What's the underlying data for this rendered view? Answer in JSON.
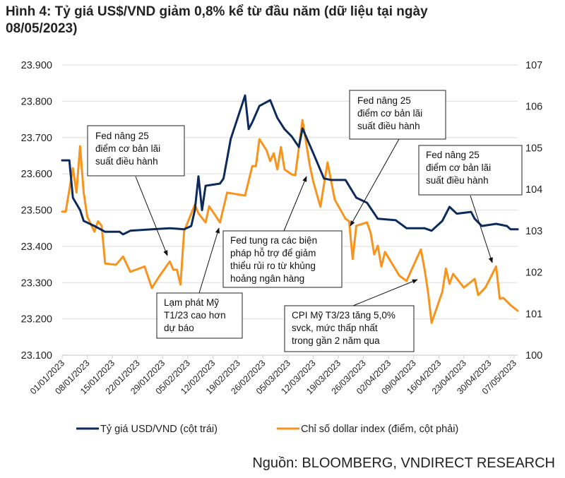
{
  "chart_data": {
    "type": "line",
    "title_lines": [
      "Hình 4: Tỷ giá US$/VND giảm 0,8% kể từ đầu năm (dữ liệu tại ngày",
      "08/05/2023)"
    ],
    "left_axis": {
      "range": [
        23100,
        23900
      ],
      "tick_labels": [
        "23.900",
        "23.800",
        "23.700",
        "23.600",
        "23.500",
        "23.400",
        "23.300",
        "23.200",
        "23.100"
      ]
    },
    "right_axis": {
      "range": [
        100,
        107
      ],
      "tick_labels": [
        "107",
        "106",
        "105",
        "104",
        "103",
        "102",
        "101",
        "100"
      ]
    },
    "x_axis": {
      "range": [
        "01/01/2023",
        "08/05/2023"
      ],
      "tick_labels": [
        "01/01/2023",
        "08/01/2023",
        "15/01/2023",
        "22/01/2023",
        "29/01/2023",
        "05/02/2023",
        "12/02/2023",
        "19/02/2023",
        "26/02/2023",
        "05/03/2023",
        "12/03/2023",
        "19/03/2023",
        "26/03/2023",
        "02/04/2023",
        "09/04/2023",
        "16/04/2023",
        "23/04/2023",
        "30/04/2023",
        "07/05/2023"
      ]
    },
    "grid": "horizontal",
    "legend_position": "bottom",
    "series": [
      {
        "name": "Tỷ giá USD/VND (cột trái)",
        "axis": "left",
        "color": "#0d2a5c",
        "x": [
          "01/01/2023",
          "03/01/2023",
          "04/01/2023",
          "06/01/2023",
          "07/01/2023",
          "10/01/2023",
          "13/01/2023",
          "17/01/2023",
          "18/01/2023",
          "20/01/2023",
          "26/01/2023",
          "31/01/2023",
          "04/02/2023",
          "06/02/2023",
          "07/02/2023",
          "08/02/2023",
          "09/02/2023",
          "10/02/2023",
          "14/02/2023",
          "15/02/2023",
          "17/02/2023",
          "21/02/2023",
          "22/02/2023",
          "23/02/2023",
          "25/02/2023",
          "28/02/2023",
          "02/03/2023",
          "04/03/2023",
          "06/03/2023",
          "08/03/2023",
          "09/03/2023",
          "12/03/2023",
          "15/03/2023",
          "17/03/2023",
          "21/03/2023",
          "24/03/2023",
          "27/03/2023",
          "30/03/2023",
          "04/04/2023",
          "07/04/2023",
          "12/04/2023",
          "14/04/2023",
          "17/04/2023",
          "19/04/2023",
          "21/04/2023",
          "25/04/2023",
          "26/04/2023",
          "28/04/2023",
          "02/05/2023",
          "05/05/2023",
          "06/05/2023",
          "08/05/2023"
        ],
        "values": [
          23637,
          23637,
          23534,
          23500,
          23470,
          23456,
          23440,
          23440,
          23433,
          23443,
          23447,
          23450,
          23447,
          23456,
          23500,
          23593,
          23500,
          23567,
          23573,
          23587,
          23696,
          23816,
          23723,
          23742,
          23787,
          23803,
          23754,
          23723,
          23703,
          23674,
          23725,
          23657,
          23587,
          23583,
          23583,
          23534,
          23520,
          23476,
          23472,
          23450,
          23450,
          23443,
          23470,
          23509,
          23490,
          23495,
          23476,
          23456,
          23462,
          23456,
          23447,
          23447
        ]
      },
      {
        "name": "Chỉ số dollar index (điểm, cột phải)",
        "axis": "right",
        "color": "#f7941d",
        "x": [
          "01/01/2023",
          "02/01/2023",
          "04/01/2023",
          "05/01/2023",
          "06/01/2023",
          "07/01/2023",
          "08/01/2023",
          "10/01/2023",
          "11/01/2023",
          "12/01/2023",
          "13/01/2023",
          "16/01/2023",
          "18/01/2023",
          "20/01/2023",
          "24/01/2023",
          "26/01/2023",
          "28/01/2023",
          "31/01/2023",
          "01/02/2023",
          "02/02/2023",
          "03/02/2023",
          "04/02/2023",
          "07/02/2023",
          "08/02/2023",
          "10/02/2023",
          "11/02/2023",
          "14/02/2023",
          "16/02/2023",
          "21/02/2023",
          "23/02/2023",
          "24/02/2023",
          "25/02/2023",
          "27/02/2023",
          "28/02/2023",
          "01/03/2023",
          "02/03/2023",
          "03/03/2023",
          "04/03/2023",
          "06/03/2023",
          "07/03/2023",
          "09/03/2023",
          "11/03/2023",
          "12/03/2023",
          "14/03/2023",
          "16/03/2023",
          "18/03/2023",
          "21/03/2023",
          "22/03/2023",
          "23/03/2023",
          "24/03/2023",
          "27/03/2023",
          "28/03/2023",
          "29/03/2023",
          "30/03/2023",
          "31/03/2023",
          "01/04/2023",
          "05/04/2023",
          "07/04/2023",
          "11/04/2023",
          "12/04/2023",
          "13/04/2023",
          "14/04/2023",
          "17/04/2023",
          "18/04/2023",
          "19/04/2023",
          "20/04/2023",
          "23/04/2023",
          "26/04/2023",
          "27/04/2023",
          "29/04/2023",
          "02/05/2023",
          "03/05/2023",
          "04/05/2023",
          "06/05/2023",
          "08/05/2023"
        ],
        "values": [
          103.46,
          103.46,
          104.51,
          103.92,
          105.04,
          103.92,
          103.34,
          102.98,
          103.23,
          103.12,
          102.21,
          102.18,
          102.38,
          102.01,
          102.14,
          101.62,
          101.89,
          102.26,
          102.06,
          102.06,
          101.7,
          102.99,
          103.63,
          103.42,
          103.2,
          103.59,
          103.2,
          103.92,
          103.85,
          104.56,
          104.56,
          105.21,
          104.94,
          104.68,
          104.87,
          104.48,
          105.02,
          104.48,
          104.36,
          104.34,
          105.67,
          104.6,
          104.19,
          103.58,
          104.65,
          103.75,
          103.29,
          103.23,
          102.32,
          103.12,
          103.2,
          102.95,
          102.43,
          102.64,
          102.14,
          102.49,
          101.92,
          101.79,
          102.55,
          102.09,
          101.53,
          100.78,
          101.53,
          102.09,
          101.72,
          101.96,
          101.63,
          101.84,
          101.45,
          101.63,
          102.14,
          101.36,
          101.38,
          101.21,
          101.07
        ]
      }
    ],
    "annotations": [
      {
        "lines": [
          "Fed nâng 25",
          "điểm cơ bản lãi",
          "suất điều hành"
        ]
      },
      {
        "lines": [
          "Lạm phát Mỹ",
          "T1/23 cao hơn",
          "dự báo"
        ]
      },
      {
        "lines": [
          "Fed tung ra các biện",
          "pháp hỗ trợ để giảm",
          "thiểu rủi ro từ khủng",
          "hoảng ngân hàng"
        ]
      },
      {
        "lines": [
          "Fed nâng 25",
          "điểm cơ bản lãi",
          "suất điều hành"
        ]
      },
      {
        "lines": [
          "Fed nâng 25",
          "điểm cơ bản lãi",
          "suất điều hành"
        ]
      },
      {
        "lines": [
          "CPI Mỹ T3/23 tăng 5,0%",
          "svck, mức thấp nhất",
          "trong gần 2 năm qua"
        ]
      }
    ],
    "source": "Nguồn: BLOOMBERG, VNDIRECT RESEARCH"
  }
}
